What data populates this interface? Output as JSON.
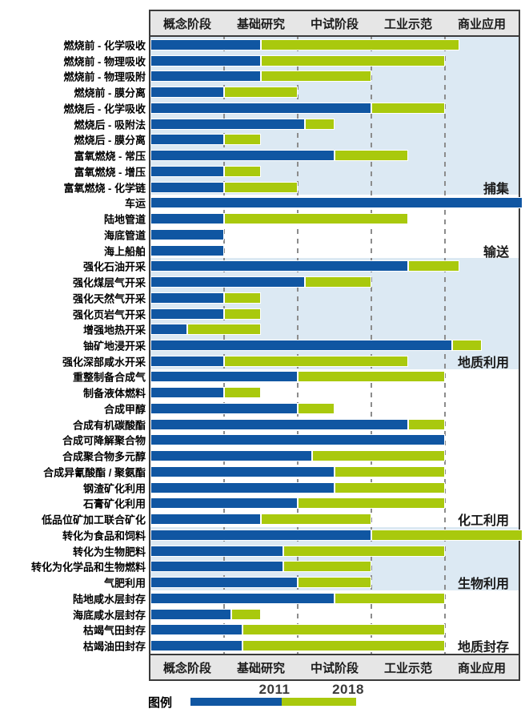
{
  "stages": [
    "概念阶段",
    "基础研究",
    "中试阶段",
    "工业示范",
    "商业应用"
  ],
  "legend": {
    "label": "图例",
    "items": [
      {
        "name": "2011",
        "color": "#1056a2"
      },
      {
        "name": "2018",
        "color": "#a9c90d"
      }
    ]
  },
  "colors": {
    "bar_2011": "#1056a2",
    "bar_2018": "#a9c90d",
    "section_shade": "#dce9f3",
    "section_plain": "#ffffff",
    "header_bg": "#e6e6e6",
    "frame_border": "#3b3b3b",
    "gridline": "#8c8c8c",
    "text": "#1a1a1a"
  },
  "chart_data": {
    "type": "bar",
    "orientation": "horizontal",
    "series": [
      "2011",
      "2018"
    ],
    "x_axis": {
      "stage_labels": [
        "概念阶段",
        "基础研究",
        "中试阶段",
        "工业示范",
        "商业应用"
      ],
      "range": [
        0,
        5
      ],
      "note": "each stage spans one unit; bar end position = maturity level reached; 2018 segment extends from the 2011 level"
    },
    "grid": "dashed vertical lines at stage boundaries",
    "groups": [
      {
        "name": "捕集",
        "shaded": true,
        "rows": [
          {
            "label": "燃烧前 - 化学吸收",
            "v2011": 1.5,
            "v2018": 4.2
          },
          {
            "label": "燃烧前 - 物理吸收",
            "v2011": 1.5,
            "v2018": 4.0
          },
          {
            "label": "燃烧前 - 物理吸附",
            "v2011": 1.5,
            "v2018": 3.0
          },
          {
            "label": "燃烧前 - 膜分离",
            "v2011": 1.0,
            "v2018": 2.0
          },
          {
            "label": "燃烧后 - 化学吸收",
            "v2011": 3.0,
            "v2018": 4.0
          },
          {
            "label": "燃烧后 - 吸附法",
            "v2011": 2.1,
            "v2018": 2.5
          },
          {
            "label": "燃烧后 - 膜分离",
            "v2011": 1.0,
            "v2018": 1.5
          },
          {
            "label": "富氧燃烧 - 常压",
            "v2011": 2.5,
            "v2018": 3.5
          },
          {
            "label": "富氧燃烧 - 增压",
            "v2011": 1.0,
            "v2018": 1.5
          },
          {
            "label": "富氧燃烧 - 化学链",
            "v2011": 1.0,
            "v2018": 2.0
          }
        ]
      },
      {
        "name": "输送",
        "shaded": false,
        "rows": [
          {
            "label": "车运",
            "v2011": 5.05,
            "v2018": null
          },
          {
            "label": "陆地管道",
            "v2011": 1.0,
            "v2018": 3.5
          },
          {
            "label": "海底管道",
            "v2011": 1.0,
            "v2018": null
          },
          {
            "label": "海上船舶",
            "v2011": 1.0,
            "v2018": null
          }
        ]
      },
      {
        "name": "地质利用",
        "shaded": true,
        "rows": [
          {
            "label": "强化石油开采",
            "v2011": 3.5,
            "v2018": 4.2
          },
          {
            "label": "强化煤层气开采",
            "v2011": 2.1,
            "v2018": 3.0
          },
          {
            "label": "强化天然气开采",
            "v2011": 1.0,
            "v2018": 1.5
          },
          {
            "label": "强化页岩气开采",
            "v2011": 1.0,
            "v2018": 1.5
          },
          {
            "label": "增强地热开采",
            "v2011": 0.5,
            "v2018": 1.5
          },
          {
            "label": "铀矿地浸开采",
            "v2011": 4.1,
            "v2018": 4.5
          },
          {
            "label": "强化深部咸水开采",
            "v2011": 1.0,
            "v2018": 3.5
          }
        ]
      },
      {
        "name": "化工利用",
        "shaded": false,
        "rows": [
          {
            "label": "重整制备合成气",
            "v2011": 2.0,
            "v2018": 4.0
          },
          {
            "label": "制备液体燃料",
            "v2011": 1.0,
            "v2018": 1.5
          },
          {
            "label": "合成甲醇",
            "v2011": 2.0,
            "v2018": 2.5
          },
          {
            "label": "合成有机碳酸酯",
            "v2011": 3.5,
            "v2018": 4.0
          },
          {
            "label": "合成可降解聚合物",
            "v2011": 4.0,
            "v2018": null
          },
          {
            "label": "合成聚合物多元醇",
            "v2011": 2.2,
            "v2018": 4.0
          },
          {
            "label": "合成异氰酸酯 / 聚氨酯",
            "v2011": 2.5,
            "v2018": 4.0
          },
          {
            "label": "钢渣矿化利用",
            "v2011": 2.5,
            "v2018": 4.0
          },
          {
            "label": "石膏矿化利用",
            "v2011": 2.0,
            "v2018": 4.0
          },
          {
            "label": "低品位矿加工联合矿化",
            "v2011": 1.5,
            "v2018": 3.0
          }
        ]
      },
      {
        "name": "生物利用",
        "shaded": true,
        "rows": [
          {
            "label": "转化为食品和饲料",
            "v2011": 3.0,
            "v2018": 5.05
          },
          {
            "label": "转化为生物肥料",
            "v2011": 1.8,
            "v2018": 4.0
          },
          {
            "label": "转化为化学品和生物燃料",
            "v2011": 1.8,
            "v2018": 3.0
          },
          {
            "label": "气肥利用",
            "v2011": 2.0,
            "v2018": 3.0
          }
        ]
      },
      {
        "name": "地质封存",
        "shaded": false,
        "rows": [
          {
            "label": "陆地咸水层封存",
            "v2011": 2.5,
            "v2018": 4.0
          },
          {
            "label": "海底咸水层封存",
            "v2011": 1.1,
            "v2018": 1.5
          },
          {
            "label": "枯竭气田封存",
            "v2011": 1.25,
            "v2018": 4.0
          },
          {
            "label": "枯竭油田封存",
            "v2011": 1.25,
            "v2018": 4.0
          }
        ]
      }
    ]
  }
}
